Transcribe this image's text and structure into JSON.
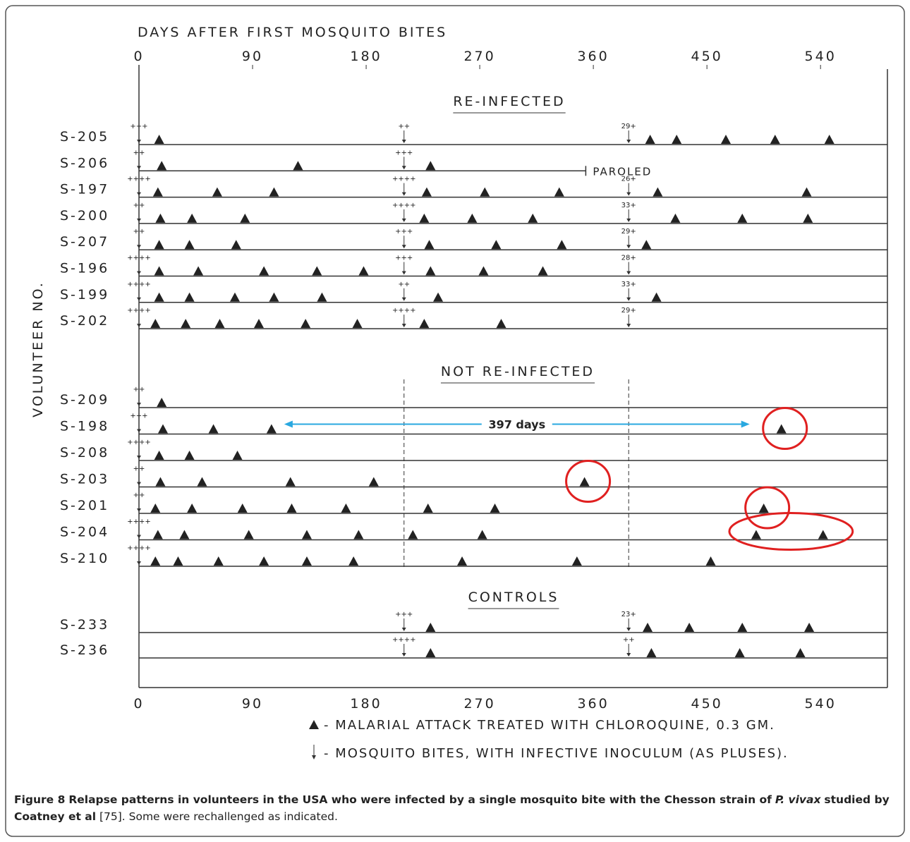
{
  "chart_data": {
    "type": "timeline",
    "title": "DAYS AFTER FIRST MOSQUITO BITES",
    "ylabel": "VOLUNTEER NO.",
    "xlim": [
      0,
      593
    ],
    "xticks": [
      0,
      90,
      180,
      270,
      360,
      450,
      540
    ],
    "groups": [
      {
        "title": "RE-INFECTED",
        "rows": [
          {
            "id": "S-205",
            "bites": [
              {
                "day": 0,
                "label": "+++"
              },
              {
                "day": 210,
                "label": "++"
              },
              {
                "day": 388,
                "label": "29+"
              }
            ],
            "attacks": [
              16,
              405,
              426,
              465,
              504,
              547
            ]
          },
          {
            "id": "S-206",
            "bites": [
              {
                "day": 0,
                "label": "++"
              },
              {
                "day": 210,
                "label": "+++"
              }
            ],
            "attacks": [
              18,
              126,
              231
            ],
            "end": 354,
            "note": "PAROLED"
          },
          {
            "id": "S-197",
            "bites": [
              {
                "day": 0,
                "label": "++++"
              },
              {
                "day": 210,
                "label": "++++"
              },
              {
                "day": 388,
                "label": "26+"
              }
            ],
            "attacks": [
              15,
              62,
              107,
              228,
              274,
              333,
              411,
              529
            ]
          },
          {
            "id": "S-200",
            "bites": [
              {
                "day": 0,
                "label": "++"
              },
              {
                "day": 210,
                "label": "++++"
              },
              {
                "day": 388,
                "label": "33+"
              }
            ],
            "attacks": [
              17,
              42,
              84,
              226,
              264,
              312,
              425,
              478,
              530
            ]
          },
          {
            "id": "S-207",
            "bites": [
              {
                "day": 0,
                "label": "++"
              },
              {
                "day": 210,
                "label": "+++"
              },
              {
                "day": 388,
                "label": "29+"
              }
            ],
            "attacks": [
              16,
              40,
              77,
              230,
              283,
              335,
              402
            ]
          },
          {
            "id": "S-196",
            "bites": [
              {
                "day": 0,
                "label": "++++"
              },
              {
                "day": 210,
                "label": "+++"
              },
              {
                "day": 388,
                "label": "28+"
              }
            ],
            "attacks": [
              16,
              47,
              99,
              141,
              178,
              231,
              273,
              320
            ]
          },
          {
            "id": "S-199",
            "bites": [
              {
                "day": 0,
                "label": "++++"
              },
              {
                "day": 210,
                "label": "++"
              },
              {
                "day": 388,
                "label": "33+"
              }
            ],
            "attacks": [
              16,
              40,
              76,
              107,
              145,
              237,
              410
            ]
          },
          {
            "id": "S-202",
            "bites": [
              {
                "day": 0,
                "label": "++++"
              },
              {
                "day": 210,
                "label": "++++"
              },
              {
                "day": 388,
                "label": "29+"
              }
            ],
            "attacks": [
              13,
              37,
              64,
              95,
              132,
              173,
              226,
              287
            ]
          }
        ]
      },
      {
        "title": "NOT RE-INFECTED",
        "rows": [
          {
            "id": "S-209",
            "bites": [
              {
                "day": 0,
                "label": "++"
              }
            ],
            "attacks": [
              18
            ]
          },
          {
            "id": "S-198",
            "bites": [
              {
                "day": 0,
                "label": "+++"
              }
            ],
            "attacks": [
              19,
              59,
              105,
              509
            ]
          },
          {
            "id": "S-208",
            "bites": [
              {
                "day": 0,
                "label": "++++"
              }
            ],
            "attacks": [
              16,
              40,
              78
            ]
          },
          {
            "id": "S-203",
            "bites": [
              {
                "day": 0,
                "label": "++"
              }
            ],
            "attacks": [
              17,
              50,
              120,
              186,
              353
            ]
          },
          {
            "id": "S-201",
            "bites": [
              {
                "day": 0,
                "label": "++"
              }
            ],
            "attacks": [
              13,
              42,
              82,
              121,
              164,
              229,
              282,
              495
            ]
          },
          {
            "id": "S-204",
            "bites": [
              {
                "day": 0,
                "label": "++++"
              }
            ],
            "attacks": [
              15,
              36,
              87,
              133,
              174,
              217,
              272,
              489,
              542
            ]
          },
          {
            "id": "S-210",
            "bites": [
              {
                "day": 0,
                "label": "++++"
              }
            ],
            "attacks": [
              13,
              31,
              63,
              99,
              133,
              170,
              256,
              347,
              453
            ]
          }
        ]
      },
      {
        "title": "CONTROLS",
        "rows": [
          {
            "id": "S-233",
            "bites": [
              {
                "day": 210,
                "label": "+++"
              },
              {
                "day": 388,
                "label": "23+"
              }
            ],
            "attacks": [
              231,
              403,
              436,
              478,
              531
            ]
          },
          {
            "id": "S-236",
            "bites": [
              {
                "day": 210,
                "label": "++++"
              },
              {
                "day": 388,
                "label": "++"
              }
            ],
            "attacks": [
              231,
              406,
              476,
              524
            ]
          }
        ]
      }
    ],
    "annotation": "397 days",
    "legend": [
      "- MALARIAL ATTACK TREATED WITH CHLOROQUINE, 0.3 GM.",
      "- MOSQUITO BITES, WITH INFECTIVE INOCULUM (AS PLUSES)."
    ]
  },
  "caption": {
    "label": "Figure 8",
    "bold1": "Relapse patterns in volunteers in the USA who were infected by a single mosquito bite with the Chesson strain of",
    "italic": "P. vivax",
    "bold2": "studied by Coatney et al",
    "rest": "[75]. Some were rechallenged as indicated."
  }
}
